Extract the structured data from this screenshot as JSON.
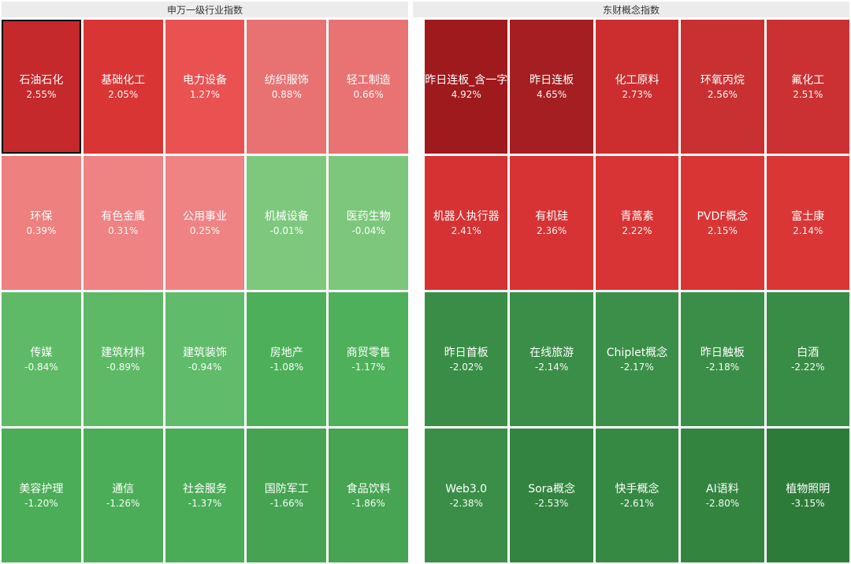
{
  "chart_data": {
    "type": "heatmap",
    "layout": "two side-by-side treemap-style boards, each 5 columns x 4 rows, tiles sorted by daily change descending",
    "color_scale": {
      "positive": "#c0392b red shades (darker = bigger gain)",
      "negative": "#2d7b39 green shades (darker = bigger loss)"
    },
    "groups": [
      {
        "title": "申万一级行业指数",
        "items": [
          {
            "label": "石油石化",
            "value": "2.55%",
            "pct": 2.55,
            "color": "#c5292b",
            "border": "#000000"
          },
          {
            "label": "基础化工",
            "value": "2.05%",
            "pct": 2.05,
            "color": "#d93534"
          },
          {
            "label": "电力设备",
            "value": "1.27%",
            "pct": 1.27,
            "color": "#ea5252"
          },
          {
            "label": "纺织服饰",
            "value": "0.88%",
            "pct": 0.88,
            "color": "#e87272"
          },
          {
            "label": "轻工制造",
            "value": "0.66%",
            "pct": 0.66,
            "color": "#e97272"
          },
          {
            "label": "环保",
            "value": "0.39%",
            "pct": 0.39,
            "color": "#ee8080"
          },
          {
            "label": "有色金属",
            "value": "0.31%",
            "pct": 0.31,
            "color": "#ef8283"
          },
          {
            "label": "公用事业",
            "value": "0.25%",
            "pct": 0.25,
            "color": "#ef8384"
          },
          {
            "label": "机械设备",
            "value": "-0.01%",
            "pct": -0.01,
            "color": "#7ec87e"
          },
          {
            "label": "医药生物",
            "value": "-0.04%",
            "pct": -0.04,
            "color": "#7dc77d"
          },
          {
            "label": "传媒",
            "value": "-0.84%",
            "pct": -0.84,
            "color": "#5fba68"
          },
          {
            "label": "建筑材料",
            "value": "-0.89%",
            "pct": -0.89,
            "color": "#5eb967"
          },
          {
            "label": "建筑装饰",
            "value": "-0.94%",
            "pct": -0.94,
            "color": "#60bb6a"
          },
          {
            "label": "房地产",
            "value": "-1.08%",
            "pct": -1.08,
            "color": "#4daf59"
          },
          {
            "label": "商贸零售",
            "value": "-1.17%",
            "pct": -1.17,
            "color": "#4fb05b"
          },
          {
            "label": "美容护理",
            "value": "-1.20%",
            "pct": -1.2,
            "color": "#4bad57"
          },
          {
            "label": "通信",
            "value": "-1.26%",
            "pct": -1.26,
            "color": "#4bad57"
          },
          {
            "label": "社会服务",
            "value": "-1.37%",
            "pct": -1.37,
            "color": "#4aac56"
          },
          {
            "label": "国防军工",
            "value": "-1.66%",
            "pct": -1.66,
            "color": "#45a351"
          },
          {
            "label": "食品饮料",
            "value": "-1.86%",
            "pct": -1.86,
            "color": "#46a452"
          }
        ]
      },
      {
        "title": "东财概念指数",
        "items": [
          {
            "label": "昨日连板_含一字",
            "value": "4.92%",
            "pct": 4.92,
            "color": "#9e1a1d"
          },
          {
            "label": "昨日连板",
            "value": "4.65%",
            "pct": 4.65,
            "color": "#a51f22"
          },
          {
            "label": "化工原料",
            "value": "2.73%",
            "pct": 2.73,
            "color": "#cc2d2e"
          },
          {
            "label": "环氧丙烷",
            "value": "2.56%",
            "pct": 2.56,
            "color": "#c93031"
          },
          {
            "label": "氟化工",
            "value": "2.51%",
            "pct": 2.51,
            "color": "#cb3132"
          },
          {
            "label": "机器人执行器",
            "value": "2.41%",
            "pct": 2.41,
            "color": "#d63233"
          },
          {
            "label": "有机硅",
            "value": "2.36%",
            "pct": 2.36,
            "color": "#d73334"
          },
          {
            "label": "青蒿素",
            "value": "2.22%",
            "pct": 2.22,
            "color": "#d93435"
          },
          {
            "label": "PVDF概念",
            "value": "2.15%",
            "pct": 2.15,
            "color": "#da3535"
          },
          {
            "label": "富士康",
            "value": "2.14%",
            "pct": 2.14,
            "color": "#da3636"
          },
          {
            "label": "昨日首板",
            "value": "-2.02%",
            "pct": -2.02,
            "color": "#3a8d47"
          },
          {
            "label": "在线旅游",
            "value": "-2.14%",
            "pct": -2.14,
            "color": "#3b8e48"
          },
          {
            "label": "Chiplet概念",
            "value": "-2.17%",
            "pct": -2.17,
            "color": "#3c8f49"
          },
          {
            "label": "昨日触板",
            "value": "-2.18%",
            "pct": -2.18,
            "color": "#3b8e48"
          },
          {
            "label": "白酒",
            "value": "-2.22%",
            "pct": -2.22,
            "color": "#398c46"
          },
          {
            "label": "Web3.0",
            "value": "-2.38%",
            "pct": -2.38,
            "color": "#3a8e47"
          },
          {
            "label": "Sora概念",
            "value": "-2.53%",
            "pct": -2.53,
            "color": "#338440"
          },
          {
            "label": "快手概念",
            "value": "-2.61%",
            "pct": -2.61,
            "color": "#368943"
          },
          {
            "label": "AI语料",
            "value": "-2.80%",
            "pct": -2.8,
            "color": "#33843f"
          },
          {
            "label": "植物照明",
            "value": "-3.15%",
            "pct": -3.15,
            "color": "#2d7b39"
          }
        ]
      }
    ]
  }
}
